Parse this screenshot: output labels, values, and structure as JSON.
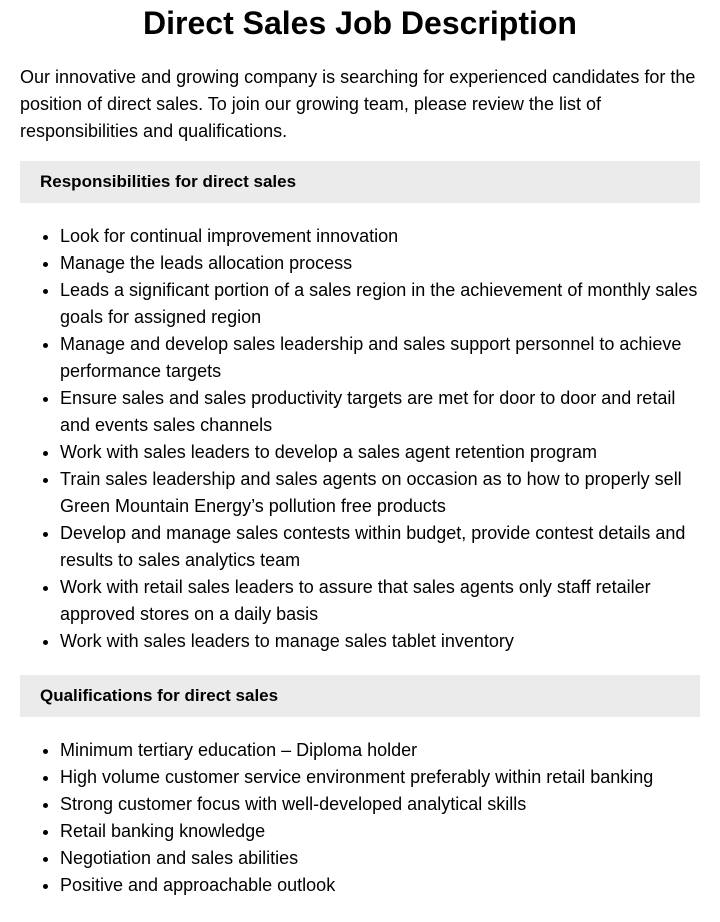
{
  "title": "Direct Sales Job Description",
  "intro": "Our innovative and growing company is searching for experienced candidates for the position of direct sales. To join our growing team, please review the list of responsibilities and qualifications.",
  "responsibilities": {
    "heading": "Responsibilities for direct sales",
    "items": [
      "Look for continual improvement innovation",
      "Manage the leads allocation process",
      "Leads a significant portion of a sales region in the achievement of monthly sales goals for assigned region",
      "Manage and develop sales leadership and sales support personnel to achieve performance targets",
      "Ensure sales and sales productivity targets are met for door to door and retail and events sales channels",
      "Work with sales leaders to develop a sales agent retention program",
      "Train sales leadership and sales agents on occasion as to how to properly sell Green Mountain Energy’s pollution free products",
      "Develop and manage sales contests within budget, provide contest details and results to sales analytics team",
      "Work with retail sales leaders to assure that sales agents only staff retailer approved stores on a daily basis",
      "Work with sales leaders to manage sales tablet inventory"
    ]
  },
  "qualifications": {
    "heading": "Qualifications for direct sales",
    "items": [
      "Minimum tertiary education – Diploma holder",
      "High volume customer service environment preferably within retail banking",
      "Strong customer focus with well-developed analytical skills",
      "Retail banking knowledge",
      "Negotiation and sales abilities",
      "Positive and approachable outlook"
    ]
  }
}
